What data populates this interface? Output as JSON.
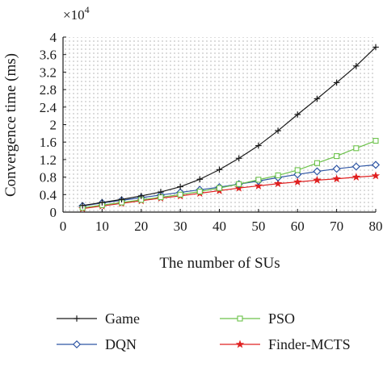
{
  "chart_data": {
    "type": "line",
    "title": "",
    "xlabel": "The number of SUs",
    "ylabel": "Convergence time (ms)",
    "y_multiplier_base": "×10",
    "y_multiplier_exp": "4",
    "xlim": [
      0,
      80
    ],
    "ylim": [
      0,
      4
    ],
    "x_ticks": [
      0,
      10,
      20,
      30,
      40,
      50,
      60,
      70,
      80
    ],
    "x_tick_labels": [
      "0",
      "10",
      "20",
      "30",
      "40",
      "50",
      "60",
      "70",
      "80"
    ],
    "y_ticks": [
      0,
      0.4,
      0.8,
      1.2,
      1.6,
      2,
      2.4,
      2.8,
      3.2,
      3.6,
      4
    ],
    "y_tick_labels": [
      "0",
      "0.4",
      "0.8",
      "1.2",
      "1.6",
      "2",
      "2.4",
      "2.8",
      "3.2",
      "3.6",
      "4"
    ],
    "grid": true,
    "legend_position": "bottom",
    "x": [
      5,
      10,
      15,
      20,
      25,
      30,
      35,
      40,
      45,
      50,
      55,
      60,
      65,
      70,
      75,
      80
    ],
    "series": [
      {
        "name": "Game",
        "marker": "plus",
        "color": "#1a1a1a",
        "values": [
          0.15,
          0.22,
          0.29,
          0.37,
          0.46,
          0.58,
          0.75,
          0.97,
          1.23,
          1.52,
          1.86,
          2.23,
          2.59,
          2.96,
          3.34,
          3.77
        ]
      },
      {
        "name": "PSO",
        "marker": "square",
        "color": "#6cc24a",
        "values": [
          0.1,
          0.16,
          0.22,
          0.28,
          0.34,
          0.4,
          0.47,
          0.55,
          0.64,
          0.74,
          0.84,
          0.96,
          1.12,
          1.28,
          1.46,
          1.63
        ]
      },
      {
        "name": "DQN",
        "marker": "diamond",
        "color": "#2f56a4",
        "values": [
          0.14,
          0.21,
          0.27,
          0.33,
          0.39,
          0.45,
          0.51,
          0.57,
          0.64,
          0.71,
          0.79,
          0.86,
          0.93,
          0.99,
          1.04,
          1.08
        ]
      },
      {
        "name": "Finder-MCTS",
        "marker": "star",
        "color": "#e02020",
        "values": [
          0.08,
          0.14,
          0.2,
          0.26,
          0.32,
          0.37,
          0.43,
          0.49,
          0.55,
          0.6,
          0.65,
          0.69,
          0.73,
          0.76,
          0.8,
          0.83
        ]
      }
    ]
  }
}
